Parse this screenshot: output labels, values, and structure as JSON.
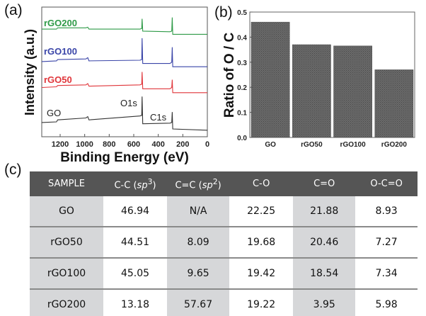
{
  "panels": {
    "a": "(a)",
    "b": "(b)",
    "c": "(c)"
  },
  "chart_data": [
    {
      "type": "line",
      "xlabel": "Binding Energy (eV)",
      "ylabel": "Intensity (a.u.)",
      "xlim": [
        1350,
        0
      ],
      "ylim": [
        0,
        1
      ],
      "x_ticks": [
        1200,
        1000,
        800,
        600,
        400,
        200,
        0
      ],
      "y_ticks": [],
      "grid": false,
      "annotations": [
        "O1s",
        "C1s"
      ],
      "series": [
        {
          "name": "GO",
          "color": "#333333",
          "points": [
            [
              1350,
              0.11
            ],
            [
              1230,
              0.115
            ],
            [
              1220,
              0.13
            ],
            [
              990,
              0.145
            ],
            [
              975,
              0.155
            ],
            [
              965,
              0.13
            ],
            [
              550,
              0.16
            ],
            [
              535,
              0.165
            ],
            [
              532,
              0.31
            ],
            [
              527,
              0.1
            ],
            [
              305,
              0.105
            ],
            [
              290,
              0.11
            ],
            [
              286,
              0.19
            ],
            [
              282,
              0.06
            ],
            [
              0,
              0.05
            ]
          ]
        },
        {
          "name": "rGO50",
          "color": "#e0353a",
          "points": [
            [
              1350,
              0.38
            ],
            [
              1230,
              0.385
            ],
            [
              1220,
              0.395
            ],
            [
              990,
              0.4
            ],
            [
              975,
              0.41
            ],
            [
              965,
              0.39
            ],
            [
              550,
              0.4
            ],
            [
              535,
              0.405
            ],
            [
              532,
              0.5
            ],
            [
              527,
              0.37
            ],
            [
              305,
              0.37
            ],
            [
              290,
              0.38
            ],
            [
              286,
              0.44
            ],
            [
              282,
              0.34
            ],
            [
              0,
              0.34
            ]
          ]
        },
        {
          "name": "rGO100",
          "color": "#3a45a8",
          "points": [
            [
              1350,
              0.58
            ],
            [
              1230,
              0.585
            ],
            [
              1220,
              0.595
            ],
            [
              990,
              0.6
            ],
            [
              975,
              0.61
            ],
            [
              965,
              0.585
            ],
            [
              550,
              0.59
            ],
            [
              535,
              0.595
            ],
            [
              532,
              0.76
            ],
            [
              527,
              0.565
            ],
            [
              305,
              0.565
            ],
            [
              290,
              0.575
            ],
            [
              286,
              0.69
            ],
            [
              282,
              0.54
            ],
            [
              0,
              0.54
            ]
          ]
        },
        {
          "name": "rGO200",
          "color": "#2e9a47",
          "points": [
            [
              1350,
              0.83
            ],
            [
              1230,
              0.83
            ],
            [
              1220,
              0.84
            ],
            [
              990,
              0.84
            ],
            [
              975,
              0.845
            ],
            [
              965,
              0.83
            ],
            [
              550,
              0.83
            ],
            [
              535,
              0.835
            ],
            [
              532,
              0.91
            ],
            [
              527,
              0.815
            ],
            [
              305,
              0.81
            ],
            [
              290,
              0.815
            ],
            [
              286,
              0.92
            ],
            [
              282,
              0.79
            ],
            [
              0,
              0.79
            ]
          ]
        }
      ]
    },
    {
      "type": "bar",
      "categories": [
        "GO",
        "rGO50",
        "rGO100",
        "rGO200"
      ],
      "values": [
        0.46,
        0.37,
        0.365,
        0.27
      ],
      "xlabel": "",
      "ylabel": "Ratio of O / C",
      "ylim": [
        0,
        0.5
      ],
      "y_ticks": [
        "0.0",
        "0.1",
        "0.2",
        "0.3",
        "0.4",
        "0.5"
      ],
      "bar_color": "#666666",
      "grid": false
    }
  ],
  "table": {
    "headers": [
      "SAMPLE",
      "C-C (sp3)",
      "C=C (sp2)",
      "C-O",
      "C=O",
      "O-C=O"
    ],
    "header_parts": [
      {
        "pre": "C-C (",
        "it": "sp",
        "sup": "3",
        "post": ")"
      },
      {
        "pre": "C=C (",
        "it": "sp",
        "sup": "2",
        "post": ")"
      }
    ],
    "rows": [
      [
        "GO",
        "46.94",
        "N/A",
        "22.25",
        "21.88",
        "8.93"
      ],
      [
        "rGO50",
        "44.51",
        "8.09",
        "19.68",
        "20.46",
        "7.27"
      ],
      [
        "rGO100",
        "45.05",
        "9.65",
        "19.42",
        "18.54",
        "7.34"
      ],
      [
        "rGO200",
        "13.18",
        "57.67",
        "19.22",
        "3.95",
        "5.98"
      ]
    ]
  }
}
